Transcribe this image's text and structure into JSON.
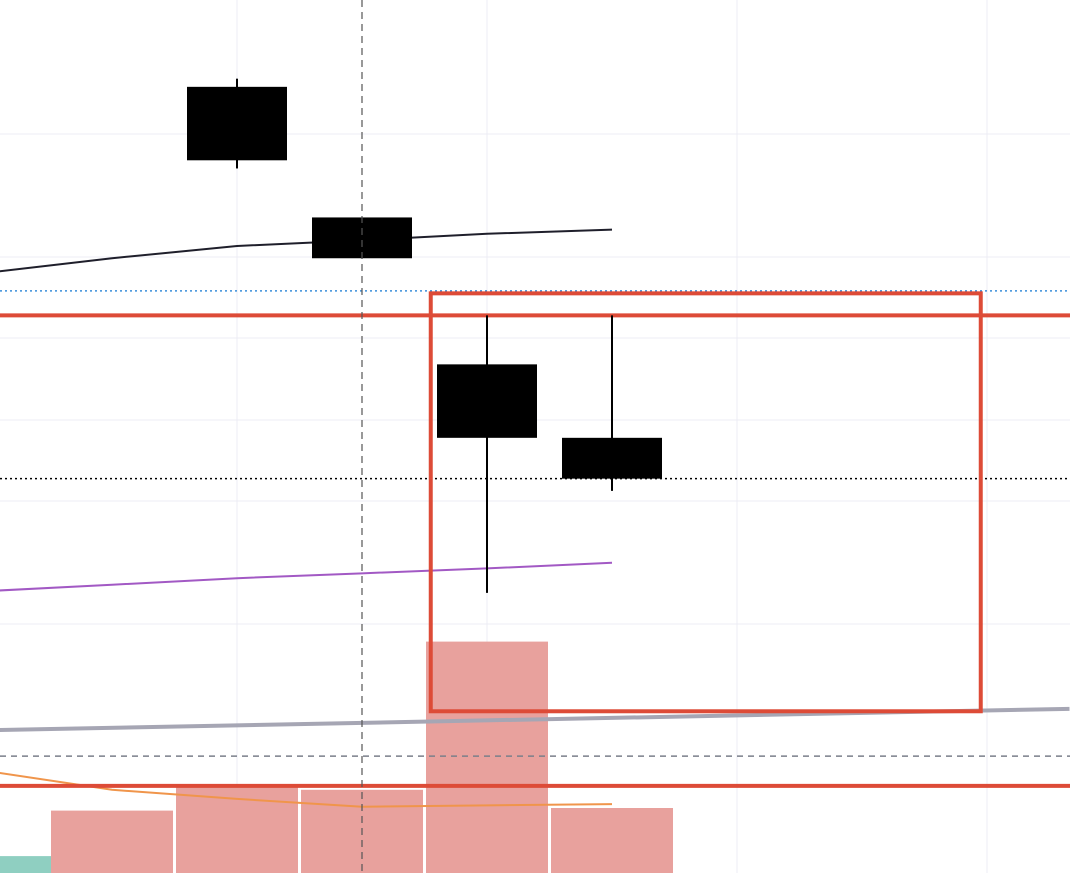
{
  "chart_data": {
    "type": "candlestick",
    "x": [
      1,
      2,
      3,
      4,
      5
    ],
    "price_range": [
      95.0,
      103.0
    ],
    "volume_range": [
      0,
      250
    ],
    "grid": true,
    "candles": [
      {
        "x": 1,
        "open": 103.1,
        "close": 102.2,
        "high": 103.2,
        "low": 102.1
      },
      {
        "x": 2,
        "open": 101.5,
        "close": 101.0,
        "high": 101.5,
        "low": 101.0
      },
      {
        "x": 3,
        "open": 99.7,
        "close": 98.8,
        "high": 100.3,
        "low": 96.9
      },
      {
        "x": 4,
        "open": 98.8,
        "close": 98.3,
        "high": 100.3,
        "low": 98.15
      }
    ],
    "moving_averages": [
      {
        "color": "#1f1f2b",
        "points": [
          [
            -0.9,
            100.84
          ],
          [
            0,
            101.0
          ],
          [
            1,
            101.15
          ],
          [
            2,
            101.22
          ],
          [
            3,
            101.3
          ],
          [
            4,
            101.35
          ]
        ]
      },
      {
        "color": "#a259c4",
        "points": [
          [
            -0.9,
            96.93
          ],
          [
            0,
            97.0
          ],
          [
            1,
            97.08
          ],
          [
            2,
            97.14
          ],
          [
            3,
            97.2
          ],
          [
            4,
            97.27
          ]
        ]
      },
      {
        "color": "#a6a6b4",
        "points": [
          [
            -0.9,
            95.22
          ],
          [
            7.66,
            95.48
          ]
        ]
      }
    ],
    "volume_bars": [
      {
        "x": -0.9,
        "value": 13,
        "color": "#8fcfc1"
      },
      {
        "x": 0,
        "value": 48,
        "color": "#e8a19d"
      },
      {
        "x": 1,
        "value": 66,
        "color": "#e8a19d"
      },
      {
        "x": 2,
        "value": 64,
        "color": "#e8a19d"
      },
      {
        "x": 3,
        "value": 178,
        "color": "#e8a19d"
      },
      {
        "x": 4,
        "value": 50,
        "color": "#e8a19d"
      }
    ],
    "volume_average": {
      "color": "#f0954b",
      "points": [
        [
          -0.9,
          77
        ],
        [
          0,
          64
        ],
        [
          1,
          57
        ],
        [
          2,
          51
        ],
        [
          3,
          52
        ],
        [
          4,
          53
        ]
      ]
    },
    "reference_lines": [
      {
        "price": 100.3,
        "color": "#dd4b37",
        "style": "solid"
      },
      {
        "price": 100.6,
        "color": "#3b8fd9",
        "style": "dotted"
      },
      {
        "price": 98.3,
        "color": "#000000",
        "style": "dotted"
      },
      {
        "price": 94.9,
        "color": "#7a7f8a",
        "style": "dashed"
      }
    ],
    "volume_reference_line": {
      "value": 67,
      "color": "#dd4b37"
    },
    "highlight_box": {
      "x_start": 2.55,
      "x_end": 6.95,
      "price_top": 100.57,
      "price_bottom": 95.45,
      "color": "#dd4b37"
    },
    "crosshair_x": 2
  }
}
